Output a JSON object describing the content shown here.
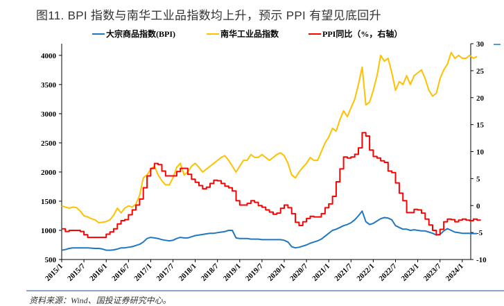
{
  "title": "图11. BPI 指数与南华工业品指数均上升，预示 PPI 有望见底回升",
  "source": "资料来源：Wind、国投证券研究中心。",
  "chart_data": {
    "type": "line",
    "x_start": "2015/1",
    "x_freq": "monthly",
    "x_tick_labels": [
      "2015/1",
      "2015/7",
      "2016/1",
      "2016/7",
      "2017/1",
      "2017/7",
      "2018/1",
      "2018/7",
      "2019/1",
      "2019/7",
      "2020/1",
      "2020/7",
      "2021/1",
      "2021/7",
      "2022/1",
      "2022/7",
      "2023/1",
      "2023/7",
      "2024/1"
    ],
    "left_axis": {
      "ylim": [
        500,
        4200
      ],
      "ticks": [
        500,
        1000,
        1500,
        2000,
        2500,
        3000,
        3500,
        4000
      ]
    },
    "right_axis": {
      "ylim": [
        -10,
        30
      ],
      "ticks": [
        -10,
        -5,
        0,
        5,
        10,
        15,
        20,
        25,
        30
      ]
    },
    "series": [
      {
        "name": "大宗商品指数(BPI)",
        "axis": "left",
        "color": "#1f77c4",
        "values": [
          660,
          670,
          690,
          700,
          700,
          700,
          700,
          700,
          695,
          690,
          690,
          680,
          660,
          660,
          665,
          680,
          700,
          700,
          710,
          720,
          740,
          760,
          800,
          860,
          880,
          870,
          860,
          840,
          830,
          820,
          830,
          860,
          880,
          870,
          870,
          890,
          910,
          920,
          930,
          940,
          950,
          950,
          960,
          970,
          980,
          1000,
          1000,
          870,
          860,
          860,
          860,
          850,
          850,
          850,
          840,
          840,
          840,
          840,
          840,
          840,
          830,
          800,
          720,
          700,
          710,
          730,
          750,
          780,
          800,
          820,
          850,
          900,
          950,
          1000,
          1020,
          1050,
          1080,
          1100,
          1130,
          1180,
          1250,
          1330,
          1150,
          1100,
          1120,
          1160,
          1200,
          1220,
          1210,
          1180,
          1080,
          1050,
          1020,
          1020,
          1000,
          1010,
          1000,
          990,
          990,
          970,
          950,
          920,
          930,
          990,
          1030,
          1000,
          970,
          960,
          950,
          950,
          950,
          945,
          945
        ]
      },
      {
        "name": "南华工业品指数",
        "axis": "left",
        "color": "#ffc000",
        "values": [
          1420,
          1400,
          1380,
          1400,
          1390,
          1330,
          1250,
          1230,
          1200,
          1180,
          1130,
          1140,
          1150,
          1180,
          1260,
          1380,
          1300,
          1380,
          1420,
          1400,
          1450,
          1600,
          1900,
          1950,
          2050,
          2100,
          1950,
          1850,
          1780,
          1780,
          1900,
          2080,
          2150,
          1950,
          2000,
          2100,
          2150,
          2080,
          2000,
          2050,
          2100,
          2150,
          2200,
          2250,
          2280,
          2200,
          2100,
          2000,
          2100,
          2200,
          2200,
          2300,
          2250,
          2250,
          2300,
          2250,
          2200,
          2250,
          2300,
          2330,
          2280,
          2150,
          1950,
          1900,
          2000,
          2080,
          2150,
          2250,
          2200,
          2200,
          2350,
          2500,
          2600,
          2750,
          2700,
          2900,
          3050,
          2950,
          3100,
          3250,
          3500,
          3800,
          3150,
          3200,
          3400,
          3650,
          4000,
          3900,
          3950,
          3700,
          3400,
          3550,
          3500,
          3650,
          3500,
          3650,
          3700,
          3750,
          3600,
          3400,
          3300,
          3350,
          3600,
          3750,
          3850,
          4050,
          3950,
          4000,
          3950,
          3950,
          4000,
          3950,
          3980
        ]
      },
      {
        "name": "PPI同比（%，右轴）",
        "axis": "right",
        "color": "#ff0000",
        "step": true,
        "values": [
          -4.3,
          -4.8,
          -4.6,
          -4.6,
          -4.6,
          -4.8,
          -5.4,
          -5.9,
          -5.9,
          -5.9,
          -5.9,
          -5.9,
          -5.3,
          -4.9,
          -4.3,
          -3.4,
          -2.8,
          -2.6,
          -1.7,
          -0.8,
          0.1,
          1.2,
          3.3,
          5.5,
          6.9,
          7.8,
          7.6,
          6.4,
          5.5,
          5.5,
          5.5,
          6.3,
          6.9,
          6.9,
          5.8,
          4.9,
          4.3,
          3.7,
          3.1,
          3.4,
          4.1,
          4.7,
          4.6,
          4.1,
          3.6,
          3.3,
          2.7,
          0.9,
          0.1,
          0.1,
          0.4,
          0.9,
          0.6,
          0.0,
          -0.3,
          -0.8,
          -1.2,
          -1.6,
          -1.4,
          -0.5,
          0.1,
          -0.4,
          -1.5,
          -3.1,
          -3.7,
          -3.0,
          -2.4,
          -2.0,
          -2.1,
          -2.1,
          -1.5,
          -0.4,
          0.3,
          1.7,
          4.4,
          6.8,
          9.0,
          8.8,
          9.0,
          9.5,
          10.7,
          13.5,
          12.9,
          10.3,
          9.1,
          8.8,
          8.3,
          8.0,
          6.4,
          6.1,
          4.2,
          2.3,
          0.9,
          -1.3,
          -1.3,
          -0.7,
          -0.8,
          -1.4,
          -2.5,
          -3.6,
          -4.6,
          -5.4,
          -4.4,
          -3.0,
          -2.5,
          -2.6,
          -3.0,
          -2.7,
          -2.5,
          -2.7,
          -2.8,
          -2.5,
          -2.7
        ]
      }
    ]
  }
}
